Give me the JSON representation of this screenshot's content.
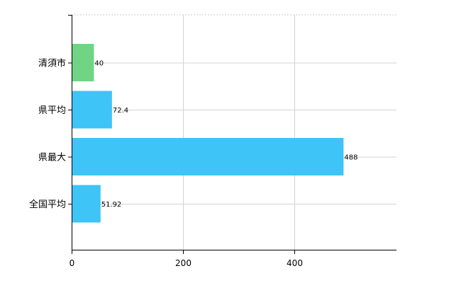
{
  "chart_data": {
    "type": "bar",
    "orientation": "horizontal",
    "categories": [
      "清須市",
      "県平均",
      "県最大",
      "全国平均"
    ],
    "values": [
      40,
      72.4,
      488,
      51.92
    ],
    "data_labels": [
      "40",
      "72.4",
      "488",
      "51.92"
    ],
    "colors": [
      "#6fd484",
      "#3ec4f6",
      "#3ec4f6",
      "#3ec4f6"
    ],
    "x_ticks": [
      0,
      200,
      400
    ],
    "xlim": [
      0,
      583
    ],
    "grid": true,
    "title": "",
    "xlabel": "",
    "ylabel": ""
  }
}
